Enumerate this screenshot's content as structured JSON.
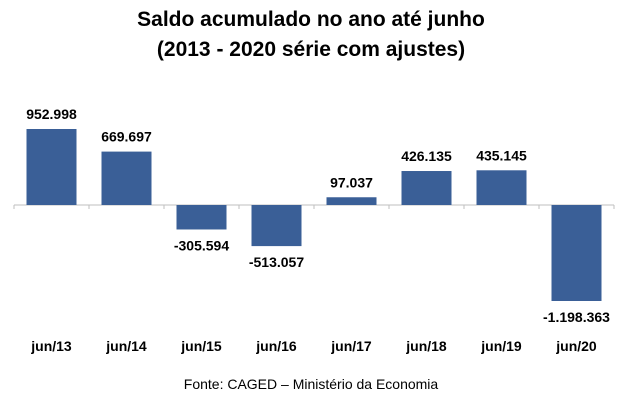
{
  "chart_data": {
    "type": "bar",
    "title": "Saldo acumulado no ano até junho",
    "subtitle": "(2013 - 2020 série com ajustes)",
    "categories": [
      "jun/13",
      "jun/14",
      "jun/15",
      "jun/16",
      "jun/17",
      "jun/18",
      "jun/19",
      "jun/20"
    ],
    "values": [
      952998,
      669697,
      -305594,
      -513057,
      97037,
      426135,
      435145,
      -1198363
    ],
    "value_labels": [
      "952.998",
      "669.697",
      "-305.594",
      "-513.057",
      "97.037",
      "426.135",
      "435.145",
      "-1.198.363"
    ],
    "ylim": [
      -1198363,
      952998
    ],
    "xlabel": "",
    "ylabel": "",
    "grid": false,
    "legend": "none",
    "bar_color": "#3a5f97"
  },
  "source": "Fonte: CAGED – Ministério da Economia"
}
